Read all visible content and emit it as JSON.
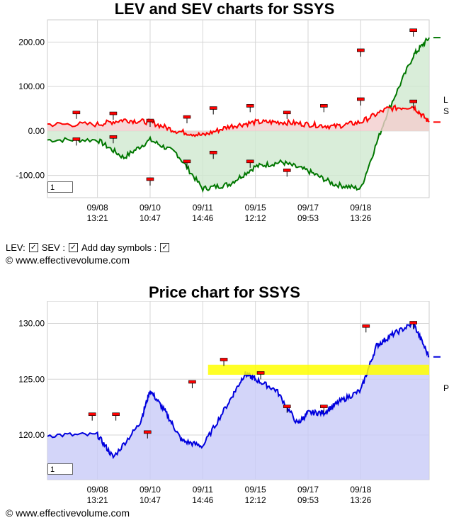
{
  "top": {
    "title": "LEV and SEV charts for SSYS",
    "zoom_value": "1",
    "legend_lev": "L",
    "legend_sev": "S",
    "y_ticks": [
      "200.00",
      "100.00",
      "0.00",
      "-100.00"
    ],
    "x_ticks": [
      [
        "09/08",
        "13:21"
      ],
      [
        "09/10",
        "10:47"
      ],
      [
        "09/11",
        "14:46"
      ],
      [
        "09/15",
        "12:12"
      ],
      [
        "09/17",
        "09:53"
      ],
      [
        "09/18",
        "13:26"
      ]
    ]
  },
  "controls": {
    "lev_label": "LEV:",
    "sev_label": "SEV :",
    "day_symbols_label": "Add day symbols :",
    "check": "✓"
  },
  "credit_top": "© www.effectivevolume.com",
  "bottom": {
    "title": "Price chart for SSYS",
    "zoom_value": "1",
    "legend_price": "P",
    "y_ticks": [
      "130.00",
      "125.00",
      "120.00"
    ],
    "x_ticks": [
      [
        "09/08",
        "13:21"
      ],
      [
        "09/10",
        "10:47"
      ],
      [
        "09/11",
        "14:46"
      ],
      [
        "09/15",
        "12:12"
      ],
      [
        "09/17",
        "09:53"
      ],
      [
        "09/18",
        "13:26"
      ]
    ]
  },
  "credit_bottom": "© www.effectivevolume.com",
  "colors": {
    "lev": "#007700",
    "lev_fill": "#cfe8cf",
    "sev": "#ff0000",
    "sev_fill": "#f3cdcd",
    "price": "#0000dd",
    "price_fill": "#c8caf7",
    "band": "#ffff00",
    "grid": "#d6d6d6"
  },
  "chart_data": [
    {
      "type": "line",
      "title": "LEV and SEV charts for SSYS",
      "x_categories": [
        "09/08 13:21",
        "09/10 10:47",
        "09/11 14:46",
        "09/15 12:12",
        "09/17 09:53",
        "09/18 13:26"
      ],
      "ylim": [
        -150,
        250
      ],
      "series": [
        {
          "name": "L",
          "x": [
            0,
            0.5,
            1,
            1.5,
            2,
            2.5,
            3,
            3.5,
            4,
            4.5,
            5,
            5.5,
            6,
            6.3
          ],
          "values": [
            -20,
            -60,
            -20,
            -50,
            -130,
            -120,
            -80,
            -70,
            -90,
            -120,
            -130,
            40,
            170,
            210
          ]
        },
        {
          "name": "S",
          "x": [
            0,
            0.5,
            1,
            1.5,
            2,
            2.5,
            3,
            3.5,
            4,
            4.5,
            5,
            5.5,
            6,
            6.3
          ],
          "values": [
            15,
            25,
            20,
            0,
            -10,
            10,
            20,
            20,
            15,
            10,
            20,
            50,
            55,
            20
          ]
        }
      ],
      "grid": true
    },
    {
      "type": "area",
      "title": "Price chart for SSYS",
      "x_categories": [
        "09/08 13:21",
        "09/10 10:47",
        "09/11 14:46",
        "09/15 12:12",
        "09/17 09:53",
        "09/18 13:26"
      ],
      "ylim": [
        116,
        132
      ],
      "band": [
        125.4,
        126.3
      ],
      "series": [
        {
          "name": "P",
          "x": [
            0,
            0.3,
            0.8,
            1,
            1.3,
            1.6,
            2,
            2.5,
            2.8,
            3,
            3.4,
            3.8,
            4,
            4.3,
            4.6,
            5,
            5.3,
            5.6,
            6,
            6.3
          ],
          "values": [
            120,
            118,
            121,
            124,
            122,
            119.5,
            119,
            123,
            125.5,
            125,
            124,
            121,
            122,
            122,
            123,
            124,
            128,
            129,
            130,
            127
          ]
        }
      ],
      "grid": true
    }
  ]
}
